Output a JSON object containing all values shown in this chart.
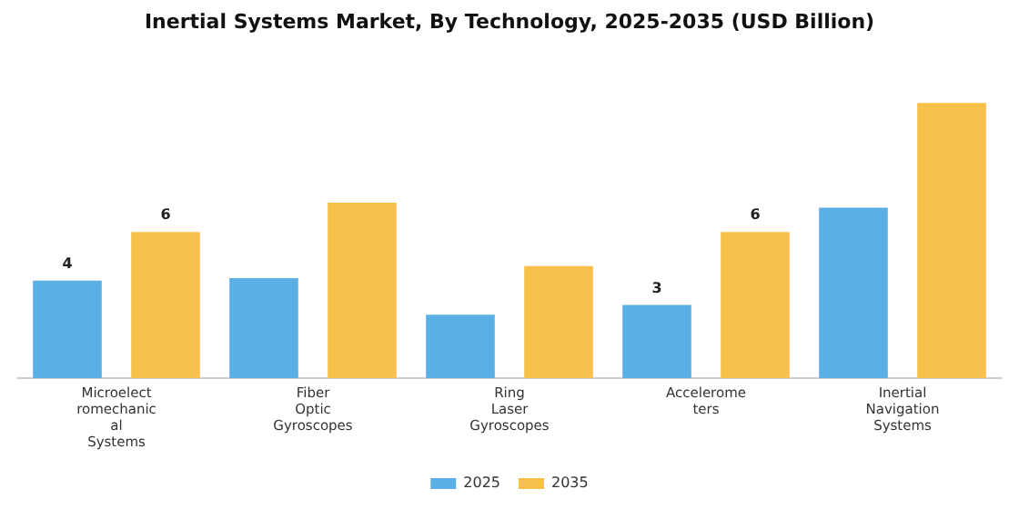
{
  "chart_data": {
    "type": "bar",
    "title": "Inertial Systems Market, By Technology, 2025-2035 (USD Billion)",
    "categories": [
      "Microelect romechanic al Systems",
      "Fiber Optic Gyroscopes",
      "Ring Laser Gyroscopes",
      "Accelerome ters",
      "Inertial Navigation Systems"
    ],
    "series": [
      {
        "name": "2025",
        "color": "#5ab0e4",
        "values": [
          4,
          4.1,
          2.6,
          3,
          7.0
        ],
        "value_labels": [
          "4",
          null,
          null,
          "3",
          null
        ]
      },
      {
        "name": "2035",
        "color": "#f7c04a",
        "values": [
          6,
          7.2,
          4.6,
          6,
          11.3
        ],
        "value_labels": [
          "6",
          null,
          null,
          "6",
          null
        ]
      }
    ],
    "legend": "bottom",
    "grid": false
  }
}
